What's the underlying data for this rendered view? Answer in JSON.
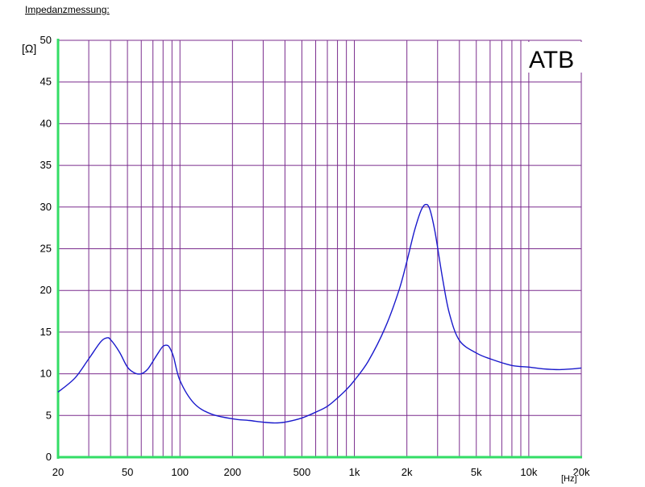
{
  "heading": "Impedanzmessung:",
  "brand_label": "ATB",
  "colors": {
    "grid": "#7b2d8e",
    "axis": "#33dd66",
    "curve": "#1a1acc"
  },
  "chart_data": {
    "type": "line",
    "title": "",
    "xlabel": "[Hz]",
    "ylabel": "[Ω]",
    "xscale": "log",
    "xlim": [
      20,
      20000
    ],
    "ylim": [
      0,
      50
    ],
    "grid": true,
    "x_ticks": [
      {
        "value": 20,
        "label": "20"
      },
      {
        "value": 50,
        "label": "50"
      },
      {
        "value": 100,
        "label": "100"
      },
      {
        "value": 200,
        "label": "200"
      },
      {
        "value": 500,
        "label": "500"
      },
      {
        "value": 1000,
        "label": "1k"
      },
      {
        "value": 2000,
        "label": "2k"
      },
      {
        "value": 5000,
        "label": "5k"
      },
      {
        "value": 10000,
        "label": "10k"
      },
      {
        "value": 20000,
        "label": "20k"
      }
    ],
    "y_ticks": [
      0,
      5,
      10,
      15,
      20,
      25,
      30,
      35,
      40,
      45,
      50
    ],
    "series": [
      {
        "x": [
          20,
          25,
          30,
          35,
          38,
          40,
          45,
          50,
          55,
          60,
          65,
          70,
          75,
          80,
          85,
          88,
          92,
          100,
          120,
          150,
          200,
          250,
          300,
          350,
          400,
          500,
          600,
          700,
          800,
          900,
          1000,
          1200,
          1500,
          1800,
          2000,
          2200,
          2400,
          2550,
          2700,
          2900,
          3200,
          3500,
          4000,
          5000,
          6000,
          8000,
          10000,
          12000,
          15000,
          18000,
          20000
        ],
        "y": [
          7.8,
          9.5,
          11.8,
          13.8,
          14.3,
          14.1,
          12.6,
          10.8,
          10.1,
          10.0,
          10.5,
          11.5,
          12.5,
          13.3,
          13.4,
          13.0,
          12.0,
          9.2,
          6.5,
          5.2,
          4.6,
          4.4,
          4.2,
          4.1,
          4.2,
          4.7,
          5.4,
          6.1,
          7.1,
          8.1,
          9.2,
          11.5,
          15.5,
          20.0,
          23.5,
          27.0,
          29.5,
          30.3,
          29.8,
          27.0,
          21.5,
          17.3,
          14.0,
          12.5,
          11.8,
          11.0,
          10.8,
          10.6,
          10.5,
          10.6,
          10.7
        ]
      }
    ]
  }
}
